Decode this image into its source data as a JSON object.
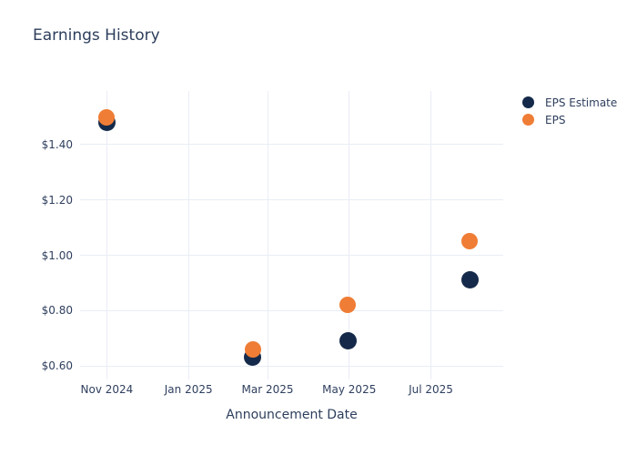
{
  "chart_data": {
    "type": "scatter",
    "title": "Earnings History",
    "xlabel": "Announcement Date",
    "ylabel": "",
    "grid": true,
    "legend_position": "top-right",
    "x_axis": {
      "min": "2024-10-12",
      "max": "2025-08-24",
      "ticks": [
        {
          "date": "2024-11-01",
          "label": "Nov 2024"
        },
        {
          "date": "2025-01-01",
          "label": "Jan 2025"
        },
        {
          "date": "2025-03-01",
          "label": "Mar 2025"
        },
        {
          "date": "2025-05-01",
          "label": "May 2025"
        },
        {
          "date": "2025-07-01",
          "label": "Jul 2025"
        }
      ]
    },
    "y_axis": {
      "min": 0.574,
      "max": 1.594,
      "ticks": [
        {
          "value": 1.4,
          "label": "$1.40"
        },
        {
          "value": 1.2,
          "label": "$1.20"
        },
        {
          "value": 1.0,
          "label": "$1.00"
        },
        {
          "value": 0.8,
          "label": "$0.80"
        },
        {
          "value": 0.6,
          "label": "$0.60"
        }
      ]
    },
    "series": [
      {
        "name": "EPS Estimate",
        "color": "#152a4a",
        "marker_size": 19,
        "points": [
          {
            "date": "2024-11-01",
            "value": 1.48
          },
          {
            "date": "2025-02-18",
            "value": 0.63
          },
          {
            "date": "2025-04-30",
            "value": 0.69
          },
          {
            "date": "2025-07-30",
            "value": 0.91
          }
        ]
      },
      {
        "name": "EPS",
        "color": "#ef7d35",
        "marker_size": 18,
        "points": [
          {
            "date": "2024-11-01",
            "value": 1.5
          },
          {
            "date": "2025-02-18",
            "value": 0.66
          },
          {
            "date": "2025-04-30",
            "value": 0.82
          },
          {
            "date": "2025-07-30",
            "value": 1.05
          }
        ]
      }
    ]
  }
}
